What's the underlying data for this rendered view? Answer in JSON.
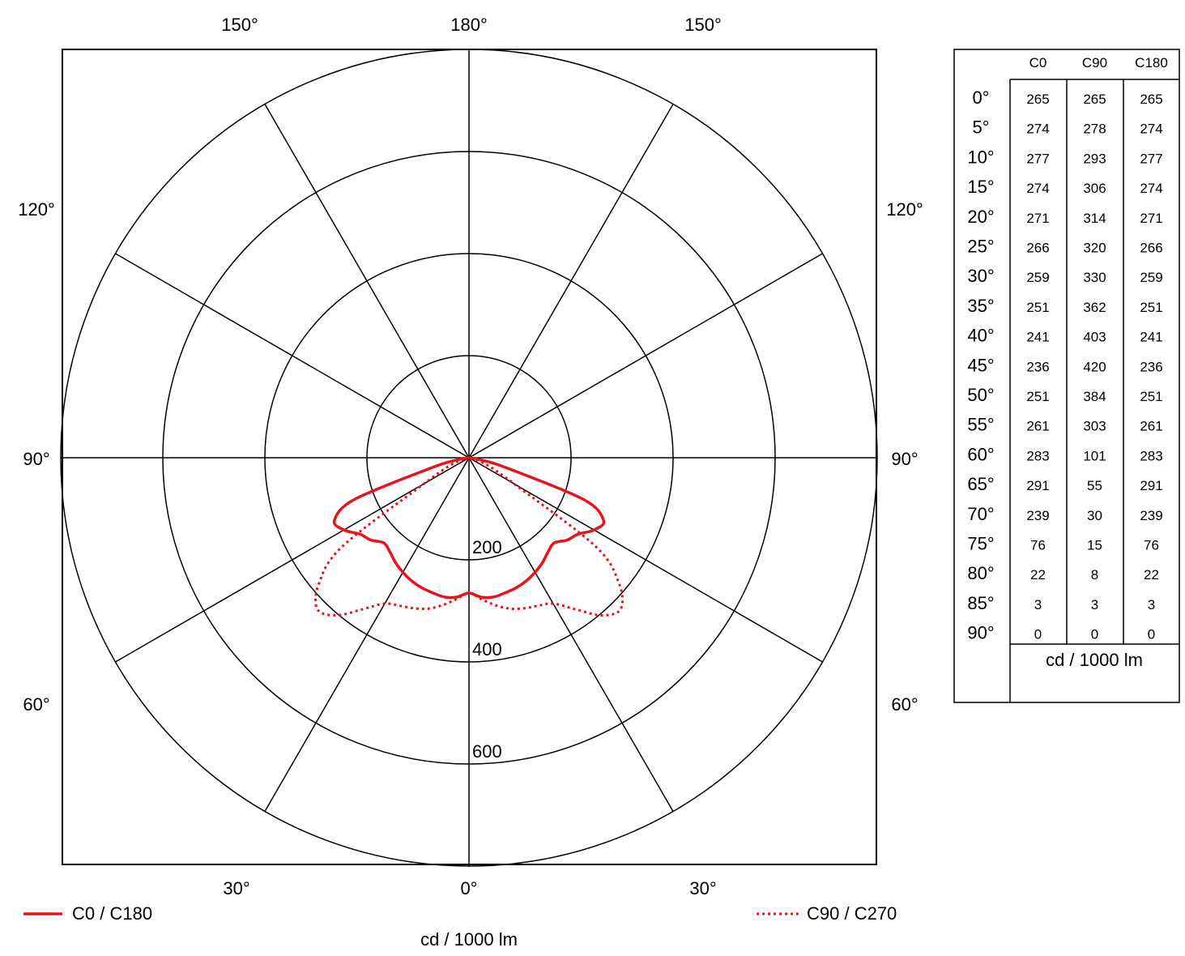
{
  "chart_data": {
    "type": "polar",
    "angle_labels": {
      "top": [
        "150°",
        "180°",
        "150°"
      ],
      "left": [
        "120°",
        "90°",
        "60°"
      ],
      "right": [
        "120°",
        "90°",
        "60°"
      ],
      "bottom": [
        "30°",
        "0°",
        "30°"
      ]
    },
    "radial_ticks": [
      200,
      400,
      600
    ],
    "rmax": 800,
    "xlabel": "cd / 1000 lm",
    "series": [
      {
        "name": "C0 / C180",
        "line_style": "solid",
        "color": "#e8141c"
      },
      {
        "name": "C90 / C270",
        "line_style": "dotted",
        "color": "#e8141c"
      }
    ],
    "table": {
      "columns": [
        "C0",
        "C90",
        "C180"
      ],
      "rows": [
        {
          "gamma": "0°",
          "values": [
            "265",
            "265",
            "265"
          ]
        },
        {
          "gamma": "5°",
          "values": [
            "274",
            "278",
            "274"
          ]
        },
        {
          "gamma": "10°",
          "values": [
            "277",
            "293",
            "277"
          ]
        },
        {
          "gamma": "15°",
          "values": [
            "274",
            "306",
            "274"
          ]
        },
        {
          "gamma": "20°",
          "values": [
            "271",
            "314",
            "271"
          ]
        },
        {
          "gamma": "25°",
          "values": [
            "266",
            "320",
            "266"
          ]
        },
        {
          "gamma": "30°",
          "values": [
            "259",
            "330",
            "259"
          ]
        },
        {
          "gamma": "35°",
          "values": [
            "251",
            "362",
            "251"
          ]
        },
        {
          "gamma": "40°",
          "values": [
            "241",
            "403",
            "241"
          ]
        },
        {
          "gamma": "45°",
          "values": [
            "236",
            "420",
            "236"
          ]
        },
        {
          "gamma": "50°",
          "values": [
            "251",
            "384",
            "251"
          ]
        },
        {
          "gamma": "55°",
          "values": [
            "261",
            "303",
            "261"
          ]
        },
        {
          "gamma": "60°",
          "values": [
            "283",
            "101",
            "283"
          ]
        },
        {
          "gamma": "65°",
          "values": [
            "291",
            "55",
            "291"
          ]
        },
        {
          "gamma": "70°",
          "values": [
            "239",
            "30",
            "239"
          ]
        },
        {
          "gamma": "75°",
          "values": [
            "76",
            "15",
            "76"
          ]
        },
        {
          "gamma": "80°",
          "values": [
            "22",
            "8",
            "22"
          ]
        },
        {
          "gamma": "85°",
          "values": [
            "3",
            "3",
            "3"
          ]
        },
        {
          "gamma": "90°",
          "values": [
            "0",
            "0",
            "0"
          ]
        }
      ],
      "unit": "cd / 1000 lm"
    }
  }
}
